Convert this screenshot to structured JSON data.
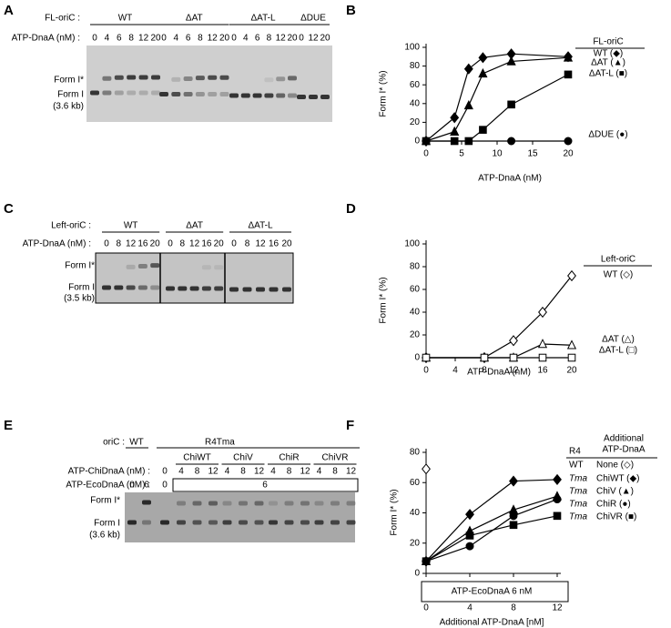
{
  "panels": [
    "A",
    "B",
    "C",
    "D",
    "E",
    "F"
  ],
  "gel_A": {
    "construct_label": "FL-oriC :",
    "dose_label": "ATP-DnaA (nM) :",
    "groups": [
      {
        "name": "WT",
        "lanes": [
          0,
          4,
          6,
          8,
          12,
          20
        ]
      },
      {
        "name": "ΔAT",
        "lanes": [
          0,
          4,
          6,
          8,
          12,
          20
        ]
      },
      {
        "name": "ΔAT-L",
        "lanes": [
          0,
          4,
          6,
          8,
          12,
          20
        ]
      },
      {
        "name": "ΔDUE",
        "lanes": [
          0,
          12,
          20
        ]
      }
    ],
    "form_star": "Form I*",
    "form": "Form I",
    "size": "(3.6 kb)"
  },
  "gel_C": {
    "construct_label": "Left-oriC :",
    "dose_label": "ATP-DnaA (nM) :",
    "groups": [
      {
        "name": "WT",
        "lanes": [
          0,
          8,
          12,
          16,
          20
        ]
      },
      {
        "name": "ΔAT",
        "lanes": [
          0,
          8,
          12,
          16,
          20
        ]
      },
      {
        "name": "ΔAT-L",
        "lanes": [
          0,
          8,
          12,
          16,
          20
        ]
      }
    ],
    "form_star": "Form I*",
    "form": "Form I",
    "size": "(3.5 kb)"
  },
  "gel_E": {
    "construct_label": "oriC :",
    "wt": "WT",
    "r4": "R4Tma",
    "subgroups": [
      {
        "name": "ChiWT",
        "lanes": [
          4,
          8,
          12
        ]
      },
      {
        "name": "ChiV",
        "lanes": [
          4,
          8,
          12
        ]
      },
      {
        "name": "ChiR",
        "lanes": [
          4,
          8,
          12
        ]
      },
      {
        "name": "ChiVR",
        "lanes": [
          4,
          8,
          12
        ]
      }
    ],
    "chi_label": "ATP-ChiDnaA (nM) :",
    "chi_zero": 0,
    "eco_label": "ATP-EcoDnaA (nM) :",
    "eco_lanes": [
      0,
      6,
      0
    ],
    "eco_box": 6,
    "form_star": "Form I*",
    "form": "Form I",
    "size": "(3.6 kb)"
  },
  "chart_data": [
    {
      "type": "line",
      "x_label": "ATP-DnaA (nM)",
      "y_label": "Form I* (%)",
      "xlim": [
        0,
        20
      ],
      "xticks": [
        0,
        5,
        10,
        15,
        20
      ],
      "ylim": [
        0,
        100
      ],
      "yticks": [
        0,
        20,
        40,
        60,
        80,
        100
      ],
      "legend_title": "FL-oriC",
      "series": [
        {
          "name": "WT (◆)",
          "color": "#000000",
          "marker": "diamond",
          "filled": true,
          "x": [
            0,
            4,
            6,
            8,
            12,
            20
          ],
          "values": [
            0,
            25,
            77,
            89,
            93,
            90
          ]
        },
        {
          "name": "ΔAT (▲)",
          "color": "#000000",
          "marker": "triangle",
          "filled": true,
          "x": [
            0,
            4,
            6,
            8,
            12,
            20
          ],
          "values": [
            0,
            10,
            38,
            72,
            85,
            89
          ]
        },
        {
          "name": "ΔAT-L (■)",
          "color": "#000000",
          "marker": "square",
          "filled": true,
          "x": [
            0,
            4,
            6,
            8,
            12,
            20
          ],
          "values": [
            0,
            0,
            0,
            12,
            39,
            71
          ]
        },
        {
          "name": "ΔDUE (●)",
          "color": "#000000",
          "marker": "circle",
          "filled": true,
          "x": [
            0,
            12,
            20
          ],
          "values": [
            0,
            0,
            0
          ]
        }
      ]
    },
    {
      "type": "line",
      "x_label": "ATP-DnaA (nM)",
      "y_label": "Form I* (%)",
      "xlim": [
        0,
        20
      ],
      "xticks": [
        0,
        4,
        8,
        12,
        16,
        20
      ],
      "ylim": [
        0,
        100
      ],
      "yticks": [
        0,
        20,
        40,
        60,
        80,
        100
      ],
      "legend_title": "Left-oriC",
      "series": [
        {
          "name": "WT (◇)",
          "color": "#000000",
          "marker": "diamond",
          "filled": false,
          "x": [
            0,
            8,
            12,
            16,
            20
          ],
          "values": [
            0,
            0,
            15,
            40,
            72
          ]
        },
        {
          "name": "ΔAT (△)",
          "color": "#000000",
          "marker": "triangle",
          "filled": false,
          "x": [
            0,
            8,
            12,
            16,
            20
          ],
          "values": [
            0,
            0,
            0,
            12,
            11
          ]
        },
        {
          "name": "ΔAT-L (□)",
          "color": "#000000",
          "marker": "square",
          "filled": false,
          "x": [
            0,
            8,
            12,
            16,
            20
          ],
          "values": [
            0,
            0,
            0,
            0,
            0
          ]
        }
      ]
    },
    {
      "type": "line",
      "x_label": "Additional ATP-DnaA [nM]",
      "y_label": "Form I* (%)",
      "xlim": [
        0,
        12
      ],
      "xticks": [
        0,
        4,
        8,
        12
      ],
      "ylim": [
        0,
        80
      ],
      "yticks": [
        0,
        20,
        40,
        60,
        80
      ],
      "box_label": "ATP-EcoDnaA 6 nM",
      "legend_strain_header": "R4",
      "legend_header": [
        "Additional",
        "ATP-DnaA"
      ],
      "series": [
        {
          "strain": "WT",
          "name": "None (◇)",
          "color": "#000000",
          "marker": "diamond",
          "filled": false,
          "x": [
            0
          ],
          "values": [
            69
          ]
        },
        {
          "strain": "Tma",
          "name": "ChiWT (◆)",
          "color": "#000000",
          "marker": "diamond",
          "filled": true,
          "x": [
            0,
            4,
            8,
            12
          ],
          "values": [
            8,
            39,
            61,
            62
          ]
        },
        {
          "strain": "Tma",
          "name": "ChiV (▲)",
          "color": "#000000",
          "marker": "triangle",
          "filled": true,
          "x": [
            0,
            4,
            8,
            12
          ],
          "values": [
            8,
            28,
            42,
            51
          ]
        },
        {
          "strain": "Tma",
          "name": "ChiR (●)",
          "color": "#000000",
          "marker": "circle",
          "filled": true,
          "x": [
            0,
            4,
            8,
            12
          ],
          "values": [
            8,
            18,
            38,
            49
          ]
        },
        {
          "strain": "Tma",
          "name": "ChiVR (■)",
          "color": "#000000",
          "marker": "square",
          "filled": true,
          "x": [
            0,
            4,
            8,
            12
          ],
          "values": [
            8,
            25,
            32,
            38
          ]
        }
      ]
    }
  ]
}
